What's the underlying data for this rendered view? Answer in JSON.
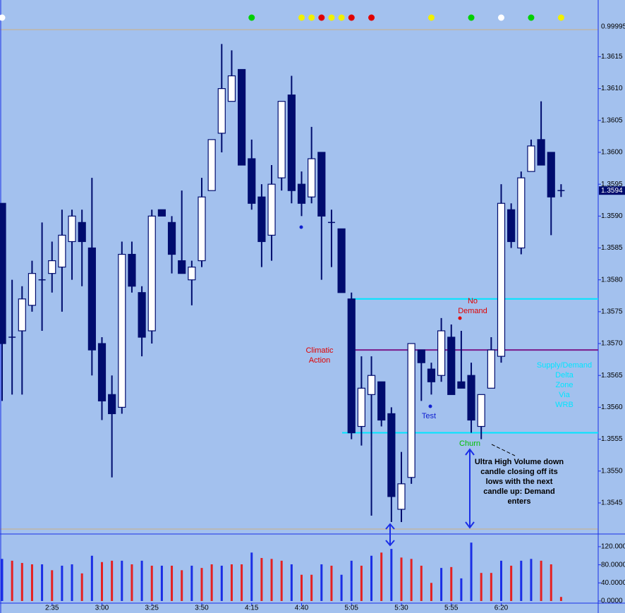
{
  "chart_data": {
    "type": "candlestick",
    "categories": [
      null,
      null,
      null,
      null,
      null,
      "2:35",
      null,
      null,
      null,
      null,
      "3:00",
      null,
      null,
      null,
      null,
      "3:25",
      null,
      null,
      null,
      null,
      "3:50",
      null,
      null,
      null,
      null,
      "4:15",
      null,
      null,
      null,
      null,
      "4:40",
      null,
      null,
      null,
      null,
      "5:05",
      null,
      null,
      null,
      null,
      "5:30",
      null,
      null,
      null,
      null,
      "5:55",
      null,
      null,
      null,
      null,
      "6:20",
      null,
      null,
      null,
      null,
      null,
      null
    ],
    "open": [
      1.3592,
      1.3571,
      1.3572,
      1.3576,
      1.358,
      1.3581,
      1.3582,
      1.3586,
      1.3589,
      1.3585,
      1.357,
      1.3562,
      1.356,
      1.3584,
      1.3578,
      1.3572,
      1.3591,
      1.3589,
      1.3583,
      1.358,
      1.3583,
      1.3594,
      1.3603,
      1.3608,
      1.3613,
      1.3599,
      1.3593,
      1.3587,
      1.3596,
      1.3609,
      1.3595,
      1.3593,
      1.36,
      1.3589,
      1.3588,
      1.3577,
      1.3557,
      1.3562,
      1.3564,
      1.3559,
      1.3544,
      1.3549,
      1.3569,
      1.3566,
      1.3565,
      1.3571,
      1.3564,
      1.3565,
      1.3557,
      1.3563,
      1.3568,
      1.3591,
      1.3585,
      1.3597,
      1.3602,
      1.36,
      1.3594
    ],
    "high": [
      1.3592,
      1.358,
      1.3579,
      1.3583,
      1.3589,
      1.3586,
      1.3591,
      1.3591,
      1.3591,
      1.3596,
      1.3571,
      1.3565,
      1.3586,
      1.3586,
      1.3579,
      1.3591,
      1.3591,
      1.359,
      1.3594,
      1.3583,
      1.3596,
      1.3602,
      1.3617,
      1.3616,
      1.3613,
      1.3602,
      1.3595,
      1.3598,
      1.3608,
      1.3612,
      1.3597,
      1.3604,
      1.36,
      1.3591,
      1.3588,
      1.3578,
      1.3568,
      1.3568,
      1.3564,
      1.356,
      1.3553,
      1.357,
      1.3569,
      1.3567,
      1.3574,
      1.3573,
      1.3572,
      1.3567,
      1.3562,
      1.3571,
      1.3595,
      1.3592,
      1.3597,
      1.3602,
      1.3608,
      1.36,
      1.3595
    ],
    "low": [
      1.3561,
      1.3562,
      1.3562,
      1.3575,
      1.3572,
      1.3578,
      1.3575,
      1.358,
      1.3579,
      1.3565,
      1.3558,
      1.3549,
      1.3559,
      1.3578,
      1.3568,
      1.357,
      1.359,
      1.3581,
      1.3581,
      1.3576,
      1.3582,
      1.3594,
      1.36,
      1.3608,
      1.3598,
      1.3591,
      1.3582,
      1.3583,
      1.3594,
      1.3592,
      1.359,
      1.3592,
      1.358,
      1.3582,
      1.3578,
      1.3555,
      1.3554,
      1.3543,
      1.3557,
      1.3542,
      1.3542,
      1.3548,
      1.3561,
      1.3562,
      1.3564,
      1.3562,
      1.3563,
      1.3556,
      1.3555,
      1.3563,
      1.3567,
      1.3585,
      1.3584,
      1.3597,
      1.3598,
      1.3587,
      1.3593
    ],
    "close": [
      1.357,
      1.3571,
      1.3577,
      1.3581,
      1.358,
      1.3583,
      1.3587,
      1.359,
      1.3586,
      1.3569,
      1.3561,
      1.3559,
      1.3584,
      1.3579,
      1.3571,
      1.359,
      1.359,
      1.3584,
      1.3581,
      1.3582,
      1.3593,
      1.3602,
      1.361,
      1.3612,
      1.3598,
      1.3592,
      1.3586,
      1.3595,
      1.3608,
      1.3594,
      1.3592,
      1.3599,
      1.359,
      1.3589,
      1.3578,
      1.3556,
      1.3563,
      1.3565,
      1.3558,
      1.3546,
      1.3548,
      1.357,
      1.3567,
      1.3564,
      1.3572,
      1.3562,
      1.3563,
      1.3558,
      1.3562,
      1.3569,
      1.3592,
      1.3586,
      1.3596,
      1.3601,
      1.3598,
      1.3593,
      1.3594
    ],
    "up_color": "#ffffff",
    "down_color": "#000c6e",
    "ylim": [
      1.35409,
      1.36239
    ],
    "yticks": [
      1.3545,
      {
        "value": 1.355,
        "label": "1.3550"
      },
      1.3555,
      {
        "value": 1.356,
        "label": "1.3560"
      },
      1.3565,
      {
        "value": 1.357,
        "label": "1.3570"
      },
      1.3575,
      {
        "value": 1.358,
        "label": "1.3580"
      },
      1.3585,
      {
        "value": 1.359,
        "label": "1.3590"
      },
      1.3595,
      {
        "value": 1.36,
        "label": "1.3600"
      },
      1.3605,
      {
        "value": 1.361,
        "label": "1.3610"
      },
      1.3615
    ],
    "top_label": "0.99995",
    "last_price": 1.3594,
    "levels": [
      {
        "value": 1.3577,
        "color": "#00e5ff"
      },
      {
        "value": 1.3569,
        "color": "#7a1a8a"
      },
      {
        "value": 1.3556,
        "color": "#00e5ff"
      }
    ],
    "signals": [
      "#ffffff",
      null,
      null,
      null,
      null,
      null,
      null,
      null,
      null,
      null,
      null,
      null,
      null,
      null,
      null,
      null,
      null,
      null,
      null,
      null,
      null,
      null,
      null,
      null,
      null,
      "#00d000",
      null,
      null,
      null,
      null,
      "#f0f000",
      "#f0f000",
      "#e00000",
      "#f0f000",
      "#f0f000",
      "#e00000",
      null,
      "#e00000",
      null,
      null,
      null,
      null,
      null,
      "#f0f000",
      null,
      null,
      null,
      "#00d000",
      null,
      null,
      "#ffffff",
      null,
      null,
      "#00d000",
      null,
      null,
      "#f0f000"
    ],
    "volume": {
      "values": [
        93,
        89,
        84,
        81,
        81,
        68,
        78,
        81,
        61,
        100,
        86,
        89,
        89,
        81,
        89,
        78,
        78,
        78,
        68,
        78,
        73,
        81,
        78,
        81,
        81,
        107,
        95,
        93,
        89,
        81,
        58,
        58,
        81,
        78,
        58,
        89,
        78,
        100,
        107,
        115,
        96,
        93,
        78,
        40,
        73,
        75,
        50,
        129,
        62,
        62,
        89,
        78,
        89,
        93,
        89,
        81,
        9
      ],
      "colors": [
        "#1a2ee6",
        "#e62020",
        "#e62020",
        "#e62020",
        "#1a2ee6",
        "#e62020",
        "#1a2ee6",
        "#1a2ee6",
        "#e62020",
        "#1a2ee6",
        "#e62020",
        "#e62020",
        "#1a2ee6",
        "#e62020",
        "#1a2ee6",
        "#e62020",
        "#1a2ee6",
        "#e62020",
        "#e62020",
        "#1a2ee6",
        "#e62020",
        "#e62020",
        "#1a2ee6",
        "#e62020",
        "#e62020",
        "#1a2ee6",
        "#e62020",
        "#e62020",
        "#e62020",
        "#1a2ee6",
        "#e62020",
        "#e62020",
        "#1a2ee6",
        "#e62020",
        "#1a2ee6",
        "#1a2ee6",
        "#e62020",
        "#1a2ee6",
        "#e62020",
        "#1a2ee6",
        "#e62020",
        "#e62020",
        "#e62020",
        "#e62020",
        "#1a2ee6",
        "#e62020",
        "#1a2ee6",
        "#1a2ee6",
        "#e62020",
        "#e62020",
        "#1a2ee6",
        "#e62020",
        "#1a2ee6",
        "#1a2ee6",
        "#e62020",
        "#e62020",
        "#e62020"
      ],
      "ylim": [
        0,
        148
      ],
      "yticks": [
        {
          "value": 0,
          "label": "0.0000"
        },
        {
          "value": 40,
          "label": "40.0000"
        },
        {
          "value": 80,
          "label": "80.0000"
        },
        {
          "value": 120,
          "label": "120.0000"
        }
      ]
    },
    "annotations": [
      {
        "lines": [
          "No",
          "Demand"
        ],
        "color": "#e00000"
      },
      {
        "lines": [
          "Climatic",
          "Action"
        ],
        "color": "#e00000"
      },
      {
        "lines": [
          "Test"
        ],
        "color": "#1020d0"
      },
      {
        "lines": [
          "Churn"
        ],
        "color": "#00c000"
      },
      {
        "lines": [
          "Supply/Demand",
          "Delta",
          "Zone",
          "Via",
          "WRB"
        ],
        "color": "#00e5ff"
      },
      {
        "lines": [
          "Ultra High Volume down",
          "candle closing off its",
          "lows with the next",
          "candle up: Demand",
          "enters"
        ],
        "color": "#000000"
      }
    ]
  }
}
